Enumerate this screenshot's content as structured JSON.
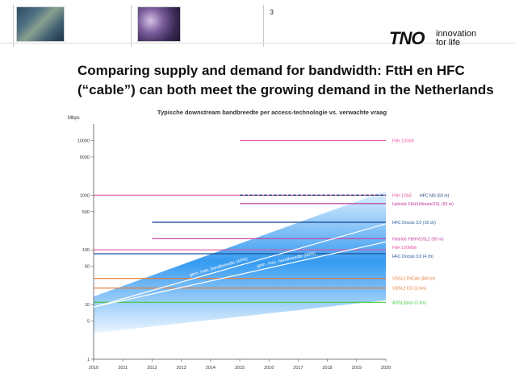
{
  "header": {
    "page_number": "3",
    "logo_text": "TNO",
    "logo_tagline_1": "innovation",
    "logo_tagline_2": "for life"
  },
  "title_lines": [
    "Comparing supply and demand for bandwidth: FttH en HFC",
    "(“cable”) can both meet the growing demand in the Netherlands"
  ],
  "chart_data": {
    "type": "line",
    "title": "Typische downstream bandbreedte per access-technologie vs. verwachte vraag",
    "ylabel": "Mbps",
    "xlabel": "",
    "yscale": "log",
    "ylim": [
      1,
      20000
    ],
    "xlim": [
      2010,
      2020
    ],
    "x_ticks": [
      2010,
      2011,
      2012,
      2013,
      2014,
      2015,
      2016,
      2017,
      2018,
      2019,
      2020
    ],
    "y_ticks": [
      1,
      5,
      10,
      50,
      100,
      500,
      1000,
      5000,
      10000
    ],
    "y_tick_labels": [
      "1",
      "5",
      "10",
      "50",
      "100",
      "500",
      "1000",
      "5000",
      "10000"
    ],
    "grid": false,
    "legend": "labels-right",
    "series": [
      {
        "name": "FttH 10GbE",
        "x": [
          2015,
          2020
        ],
        "y": [
          10000,
          10000
        ],
        "color": "#e8559e"
      },
      {
        "name": "FttH 1GbE",
        "x": [
          2010,
          2020
        ],
        "y": [
          1000,
          1000
        ],
        "color": "#e8559e"
      },
      {
        "name": "HFC NG (50 m)",
        "x": [
          2015,
          2020
        ],
        "y": [
          1000,
          1000
        ],
        "color": "#1f3f74",
        "dashed": true
      },
      {
        "name": "Hybride FttH/UltimateDSL (50 m)",
        "x": [
          2015,
          2020
        ],
        "y": [
          700,
          700
        ],
        "color": "#c0399a"
      },
      {
        "name": "HFC Docsis 3.0 (16 ch)",
        "x": [
          2012,
          2020
        ],
        "y": [
          320,
          320
        ],
        "color": "#1f4e96"
      },
      {
        "name": "Hybride FttH/VDSL2 (50 m)",
        "x": [
          2012,
          2020
        ],
        "y": [
          160,
          160
        ],
        "color": "#c0399a"
      },
      {
        "name": "FttH 100MbE",
        "x": [
          2010,
          2020
        ],
        "y": [
          100,
          100
        ],
        "color": "#e8559e"
      },
      {
        "name": "HFC Docsis 3.0 (4 ch)",
        "x": [
          2010,
          2020
        ],
        "y": [
          85,
          85
        ],
        "color": "#1f4e96"
      },
      {
        "name": "VDSL2 FttCab (300 m)",
        "x": [
          2010,
          2020
        ],
        "y": [
          30,
          30
        ],
        "color": "#e8772e"
      },
      {
        "name": "VDSL2 CO (1 km)",
        "x": [
          2010,
          2020
        ],
        "y": [
          20,
          20
        ],
        "color": "#e8772e"
      },
      {
        "name": "ADSL2plus (2 km)",
        "x": [
          2010,
          2020
        ],
        "y": [
          11,
          11
        ],
        "color": "#3ec83e"
      }
    ],
    "demand_trends": [
      {
        "name": "gem. max. bandbreedte (40%)",
        "x": [
          2010,
          2020
        ],
        "y": [
          9,
          300
        ],
        "color": "#ffffff"
      },
      {
        "name": "gem. max. bandbreedte (30%)",
        "x": [
          2010,
          2020
        ],
        "y": [
          9,
          140
        ],
        "color": "#ffffff"
      }
    ],
    "demand_band": {
      "x": [
        2010,
        2020
      ],
      "upper": [
        14,
        1200
      ],
      "lower": [
        3,
        12
      ],
      "color": "#1e8be6"
    }
  }
}
